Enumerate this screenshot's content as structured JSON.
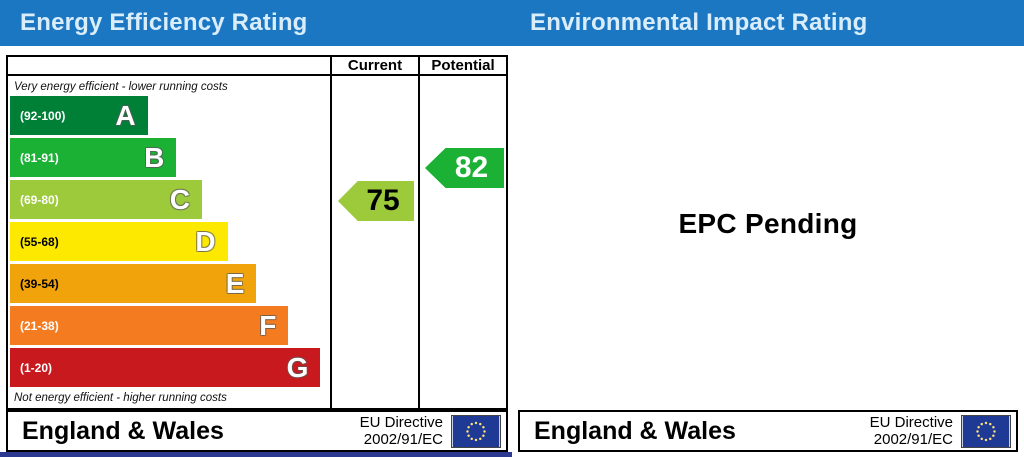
{
  "colors": {
    "header_blue": "#1c77c3",
    "header_text": "#d9edfb",
    "flag_navy": "#1e3a94",
    "flag_stars": "#ffe27a",
    "bottom_strip_navy": "#2b3990",
    "border_black": "#000000"
  },
  "left_panel": {
    "title": "Energy Efficiency Rating",
    "columns": {
      "current": "Current",
      "potential": "Potential"
    },
    "caption_top": "Very energy efficient - lower running costs",
    "caption_bottom": "Not energy efficient - higher running costs",
    "bands": [
      {
        "letter": "A",
        "range": "(92-100)",
        "color": "#008037",
        "label_color": "#ffffff",
        "width_pct": 43
      },
      {
        "letter": "B",
        "range": "(81-91)",
        "color": "#1bb135",
        "label_color": "#ffffff",
        "width_pct": 52
      },
      {
        "letter": "C",
        "range": "(69-80)",
        "color": "#9cca3a",
        "label_color": "#ffffff",
        "width_pct": 60
      },
      {
        "letter": "D",
        "range": "(55-68)",
        "color": "#fde800",
        "label_color": "#000000",
        "width_pct": 68
      },
      {
        "letter": "E",
        "range": "(39-54)",
        "color": "#f0a30a",
        "label_color": "#000000",
        "width_pct": 77
      },
      {
        "letter": "F",
        "range": "(21-38)",
        "color": "#f47b20",
        "label_color": "#ffffff",
        "width_pct": 87
      },
      {
        "letter": "G",
        "range": "(1-20)",
        "color": "#c8191e",
        "label_color": "#ffffff",
        "width_pct": 97
      }
    ],
    "current": {
      "value": "75",
      "color": "#9cca3a",
      "text_color": "#000000",
      "band_index": 2
    },
    "potential": {
      "value": "82",
      "color": "#1bb135",
      "text_color": "#ffffff",
      "band_index": 1
    },
    "footer": {
      "region": "England & Wales",
      "directive_line1": "EU Directive",
      "directive_line2": "2002/91/EC"
    }
  },
  "right_panel": {
    "title": "Environmental Impact Rating",
    "status": "EPC Pending",
    "footer": {
      "region": "England & Wales",
      "directive_line1": "EU Directive",
      "directive_line2": "2002/91/EC"
    }
  },
  "chart_data": {
    "type": "bar",
    "title": "Energy Efficiency Rating",
    "categories": [
      "A (92-100)",
      "B (81-91)",
      "C (69-80)",
      "D (55-68)",
      "E (39-54)",
      "F (21-38)",
      "G (1-20)"
    ],
    "values": [
      43,
      52,
      60,
      68,
      77,
      87,
      97
    ],
    "values_note": "bar lengths are the decorative A-G ramp (percent of band area width)",
    "markers": [
      {
        "name": "Current",
        "value": 75,
        "band": "C"
      },
      {
        "name": "Potential",
        "value": 82,
        "band": "B"
      }
    ],
    "xlabel": "",
    "ylabel": "",
    "legend_position": "none",
    "grid": false,
    "companion_panel": {
      "title": "Environmental Impact Rating",
      "status": "EPC Pending"
    }
  }
}
